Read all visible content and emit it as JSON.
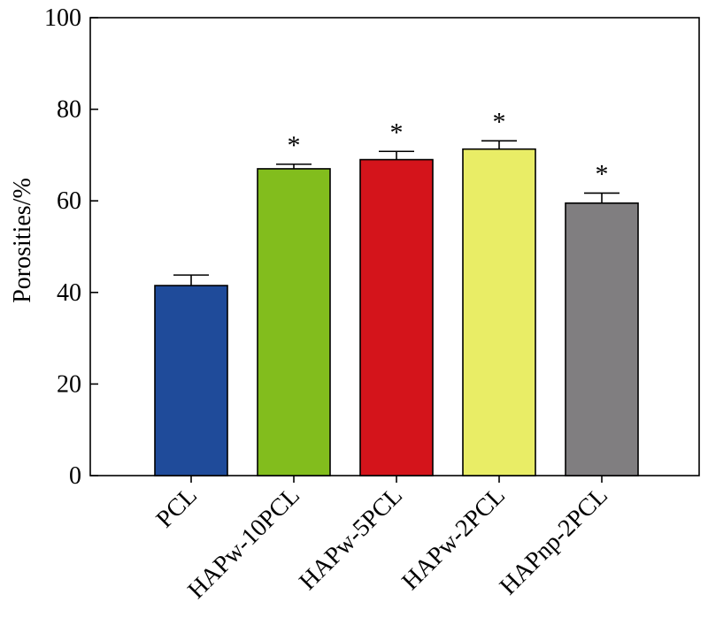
{
  "chart_data": {
    "type": "bar",
    "title": "",
    "xlabel": "",
    "ylabel": "Porosities/%",
    "ylim": [
      0,
      100
    ],
    "yticks": [
      "0",
      "20",
      "40",
      "60",
      "80",
      "100"
    ],
    "categories": [
      "PCL",
      "HAPw-10PCL",
      "HAPw-5PCL",
      "HAPw-2PCL",
      "HAPnp-2PCL"
    ],
    "values": [
      41.5,
      67,
      69,
      71.3,
      59.5
    ],
    "errors": [
      2.3,
      1.0,
      1.8,
      1.8,
      2.2
    ],
    "significance": [
      "",
      "*",
      "*",
      "*",
      "*"
    ],
    "colors": [
      "#1f4b9a",
      "#82bd1d",
      "#d4141b",
      "#e9ed66",
      "#807e80"
    ],
    "grid": false,
    "legend": "none"
  }
}
